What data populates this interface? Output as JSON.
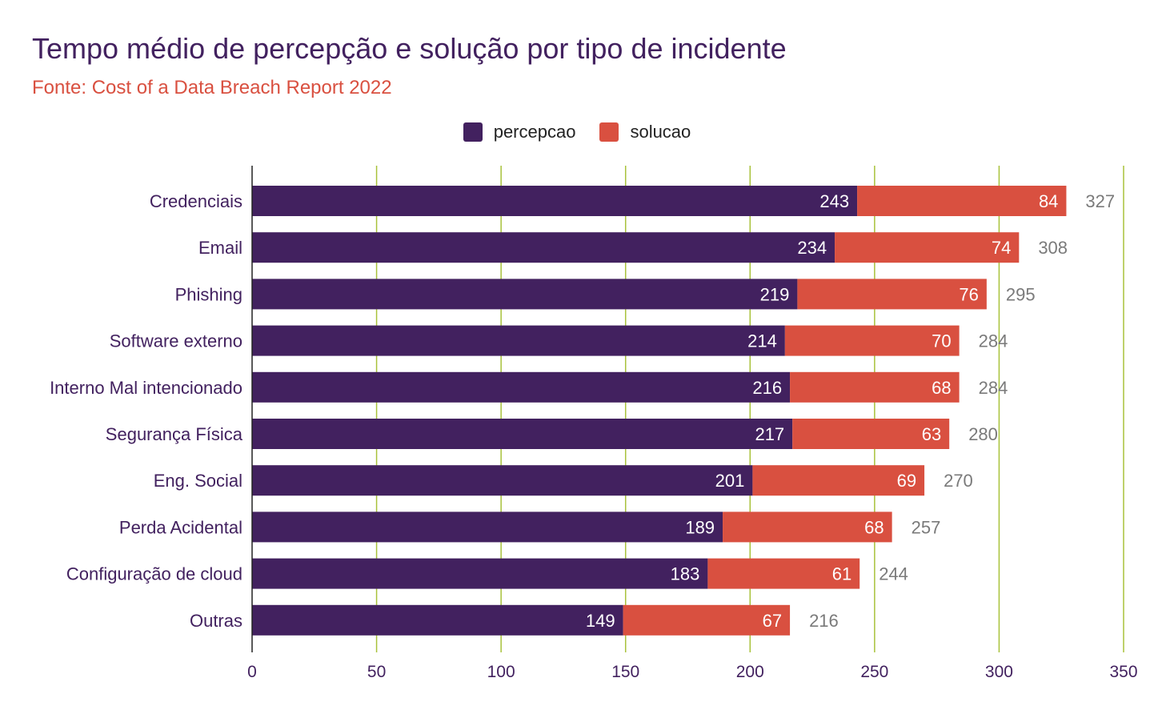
{
  "header": {
    "title": "Tempo médio de percepção e solução por tipo de incidente",
    "subtitle": "Fonte: Cost of a Data Breach Report 2022"
  },
  "colors": {
    "percepcao": "#42215f",
    "solucao": "#d95040",
    "grid": "#a8c23a",
    "total_label": "#7a7a7a",
    "category_label": "#42215f",
    "tick_label": "#42215f"
  },
  "chart_data": {
    "type": "bar",
    "orientation": "horizontal",
    "stacked": true,
    "title": "Tempo médio de percepção e solução por tipo de incidente",
    "subtitle": "Fonte: Cost of a Data Breach Report 2022",
    "legend_position": "top-center",
    "categories": [
      "Credenciais",
      "Email",
      "Phishing",
      "Software externo",
      "Interno Mal intencionado",
      "Segurança Física",
      "Eng. Social",
      "Perda Acidental",
      "Configuração de cloud",
      "Outras"
    ],
    "series": [
      {
        "name": "percepcao",
        "values": [
          243,
          234,
          219,
          214,
          216,
          217,
          201,
          189,
          183,
          149
        ]
      },
      {
        "name": "solucao",
        "values": [
          84,
          74,
          76,
          70,
          68,
          63,
          69,
          68,
          61,
          67
        ]
      }
    ],
    "totals": [
      327,
      308,
      295,
      284,
      284,
      280,
      270,
      257,
      244,
      216
    ],
    "xlim": [
      0,
      350
    ],
    "xticks": [
      0,
      50,
      100,
      150,
      200,
      250,
      300,
      350
    ],
    "grid": true
  }
}
